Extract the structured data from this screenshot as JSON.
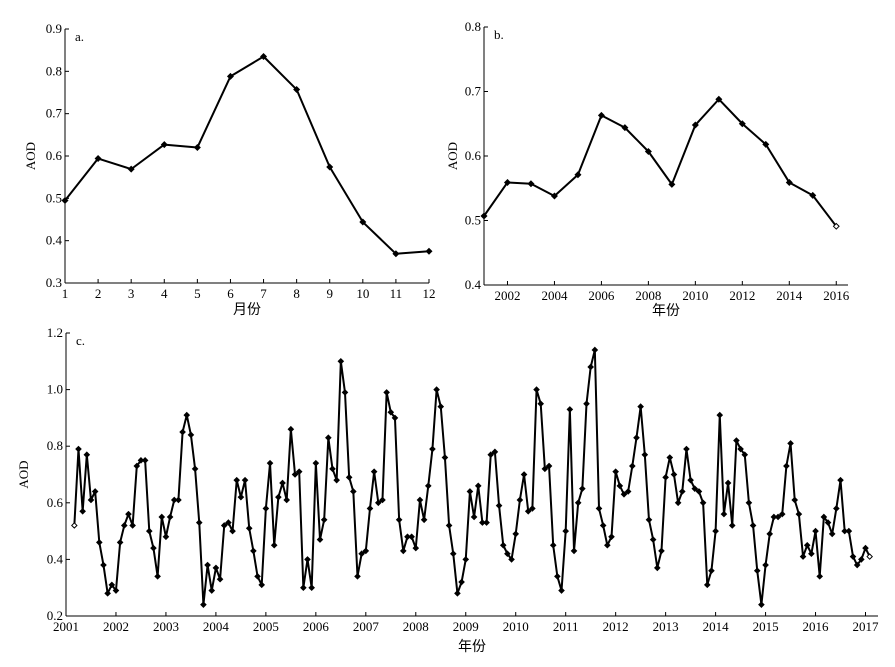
{
  "chart_data": [
    {
      "type": "line",
      "panel_label": "a.",
      "xlabel": "月份",
      "ylabel": "AOD",
      "xlim": [
        1,
        12
      ],
      "ylim": [
        0.3,
        0.9
      ],
      "xticks": [
        1,
        2,
        3,
        4,
        5,
        6,
        7,
        8,
        9,
        10,
        11,
        12
      ],
      "xtick_labels": [
        "1",
        "2",
        "3",
        "4",
        "5",
        "6",
        "7",
        "8",
        "9",
        "10",
        "11",
        "12"
      ],
      "yticks": [
        0.3,
        0.4,
        0.5,
        0.6,
        0.7,
        0.8,
        0.9
      ],
      "ytick_labels": [
        "0.3",
        "0.4",
        "0.5",
        "0.6",
        "0.7",
        "0.8",
        "0.9"
      ],
      "grid": false,
      "x": [
        1,
        2,
        3,
        4,
        5,
        6,
        7,
        8,
        9,
        10,
        11,
        12
      ],
      "y": [
        0.495,
        0.594,
        0.569,
        0.627,
        0.62,
        0.788,
        0.835,
        0.757,
        0.574,
        0.444,
        0.369,
        0.375
      ]
    },
    {
      "type": "line",
      "panel_label": "b.",
      "xlabel": "年份",
      "ylabel": "AOD",
      "xlim": [
        2001,
        2016.5
      ],
      "ylim": [
        0.4,
        0.8
      ],
      "xticks": [
        2002,
        2004,
        2006,
        2008,
        2010,
        2012,
        2014,
        2016
      ],
      "xtick_labels": [
        "2002",
        "2004",
        "2006",
        "2008",
        "2010",
        "2012",
        "2014",
        "2016"
      ],
      "yticks": [
        0.4,
        0.5,
        0.6,
        0.7,
        0.8
      ],
      "ytick_labels": [
        "0.4",
        "0.5",
        "0.6",
        "0.7",
        "0.8"
      ],
      "grid": false,
      "x": [
        2001,
        2002,
        2003,
        2004,
        2005,
        2006,
        2007,
        2008,
        2009,
        2010,
        2011,
        2012,
        2013,
        2014,
        2015,
        2016
      ],
      "y": [
        0.507,
        0.559,
        0.557,
        0.538,
        0.571,
        0.663,
        0.644,
        0.607,
        0.556,
        0.648,
        0.688,
        0.65,
        0.618,
        0.559,
        0.539,
        0.491
      ]
    },
    {
      "type": "line",
      "panel_label": "c.",
      "xlabel": "年份",
      "ylabel": "AOD",
      "xlim": [
        2001,
        2017.25
      ],
      "ylim": [
        0.2,
        1.2
      ],
      "xticks": [
        2001,
        2002,
        2003,
        2004,
        2005,
        2006,
        2007,
        2008,
        2009,
        2010,
        2011,
        2012,
        2013,
        2014,
        2015,
        2016,
        2017
      ],
      "xtick_labels": [
        "2001",
        "2002",
        "2003",
        "2004",
        "2005",
        "2006",
        "2007",
        "2008",
        "2009",
        "2010",
        "2011",
        "2012",
        "2013",
        "2014",
        "2015",
        "2016",
        "2017"
      ],
      "yticks": [
        0.2,
        0.4,
        0.6,
        0.8,
        1.0,
        1.2
      ],
      "ytick_labels": [
        "0.2",
        "0.4",
        "0.6",
        "0.8",
        "1.0",
        "1.2"
      ],
      "grid": false,
      "start_year": 2001,
      "start_month": 3,
      "y": [
        0.52,
        0.79,
        0.57,
        0.77,
        0.61,
        0.64,
        0.46,
        0.38,
        0.28,
        0.31,
        0.29,
        0.46,
        0.52,
        0.56,
        0.52,
        0.73,
        0.75,
        0.75,
        0.5,
        0.44,
        0.34,
        0.55,
        0.48,
        0.55,
        0.61,
        0.61,
        0.85,
        0.91,
        0.84,
        0.72,
        0.53,
        0.24,
        0.38,
        0.29,
        0.37,
        0.33,
        0.52,
        0.53,
        0.5,
        0.68,
        0.62,
        0.68,
        0.51,
        0.43,
        0.34,
        0.31,
        0.58,
        0.74,
        0.45,
        0.62,
        0.67,
        0.61,
        0.86,
        0.7,
        0.71,
        0.3,
        0.4,
        0.3,
        0.74,
        0.47,
        0.54,
        0.83,
        0.72,
        0.68,
        1.1,
        0.99,
        0.69,
        0.64,
        0.34,
        0.42,
        0.43,
        0.58,
        0.71,
        0.6,
        0.61,
        0.99,
        0.92,
        0.9,
        0.54,
        0.43,
        0.48,
        0.48,
        0.44,
        0.61,
        0.54,
        0.66,
        0.79,
        1.0,
        0.94,
        0.76,
        0.52,
        0.42,
        0.28,
        0.32,
        0.4,
        0.64,
        0.55,
        0.66,
        0.53,
        0.53,
        0.77,
        0.78,
        0.59,
        0.45,
        0.42,
        0.4,
        0.49,
        0.61,
        0.7,
        0.57,
        0.58,
        1.0,
        0.95,
        0.72,
        0.73,
        0.45,
        0.34,
        0.29,
        0.5,
        0.93,
        0.43,
        0.6,
        0.65,
        0.95,
        1.08,
        1.14,
        0.58,
        0.52,
        0.45,
        0.48,
        0.71,
        0.66,
        0.63,
        0.64,
        0.73,
        0.83,
        0.94,
        0.77,
        0.54,
        0.47,
        0.37,
        0.43,
        0.69,
        0.76,
        0.7,
        0.6,
        0.64,
        0.79,
        0.68,
        0.65,
        0.64,
        0.6,
        0.31,
        0.36,
        0.5,
        0.91,
        0.56,
        0.67,
        0.52,
        0.82,
        0.79,
        0.77,
        0.6,
        0.52,
        0.36,
        0.24,
        0.38,
        0.49,
        0.55,
        0.55,
        0.56,
        0.73,
        0.81,
        0.61,
        0.56,
        0.41,
        0.45,
        0.42,
        0.5,
        0.34,
        0.55,
        0.53,
        0.49,
        0.58,
        0.68,
        0.5,
        0.5,
        0.41,
        0.38,
        0.4,
        0.44,
        0.41
      ]
    }
  ]
}
